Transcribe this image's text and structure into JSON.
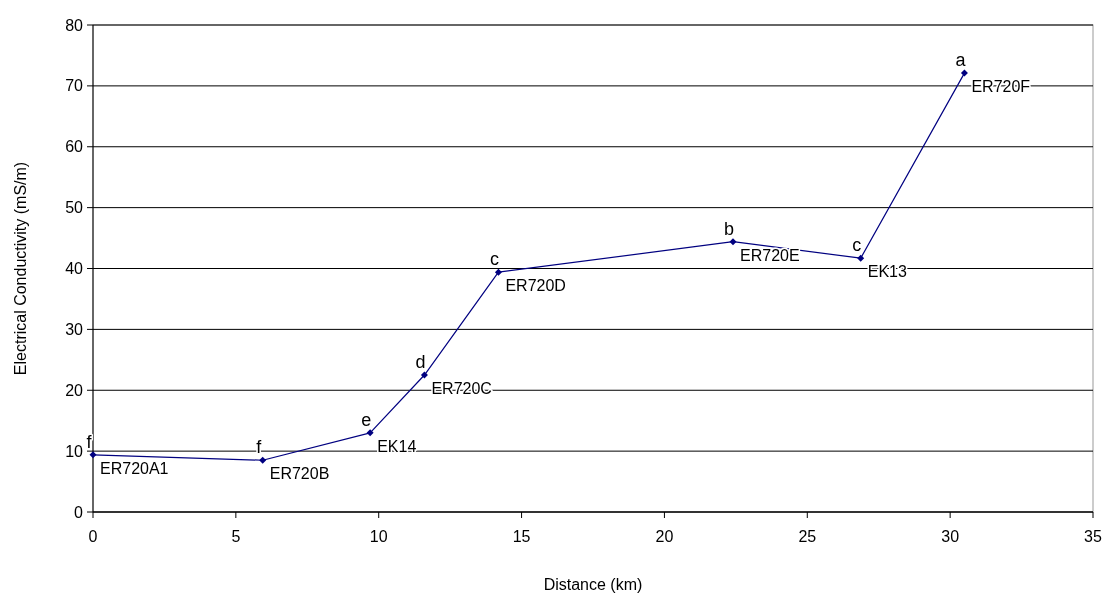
{
  "chart_data": {
    "type": "line",
    "xlabel": "Distance (km)",
    "ylabel": "Electrical Conductivity (mS/m)",
    "x": [
      0,
      5.94,
      9.7,
      11.6,
      14.19,
      22.4,
      26.87,
      30.5
    ],
    "series": [
      {
        "color": "#000080",
        "values": [
          9.4,
          8.5,
          13.0,
          22.5,
          39.4,
          44.4,
          41.7,
          72.1
        ],
        "value_labels": [
          "ER720A1",
          "ER720B",
          "EK14",
          "ER720C",
          "ER720D",
          "ER720E",
          "EK13",
          "ER720F"
        ]
      }
    ],
    "annotations": [
      {
        "text": "f",
        "x": 0,
        "y": 9.4
      },
      {
        "text": "f",
        "x": 5.94,
        "y": 8.5
      },
      {
        "text": "e",
        "x": 9.7,
        "y": 13.0
      },
      {
        "text": "d",
        "x": 11.6,
        "y": 22.5
      },
      {
        "text": "c",
        "x": 14.19,
        "y": 39.4
      },
      {
        "text": "b",
        "x": 22.4,
        "y": 44.4
      },
      {
        "text": "c",
        "x": 26.87,
        "y": 41.7
      },
      {
        "text": "a",
        "x": 30.5,
        "y": 72.1
      }
    ],
    "xlim": [
      0,
      35
    ],
    "xticks": [
      0,
      5,
      10,
      15,
      20,
      25,
      30,
      35
    ],
    "ylim": [
      0,
      80
    ],
    "yticks": [
      0,
      10,
      20,
      30,
      40,
      50,
      60,
      70,
      80
    ],
    "grid": "y",
    "marker": "diamond",
    "line_style": "solid"
  }
}
